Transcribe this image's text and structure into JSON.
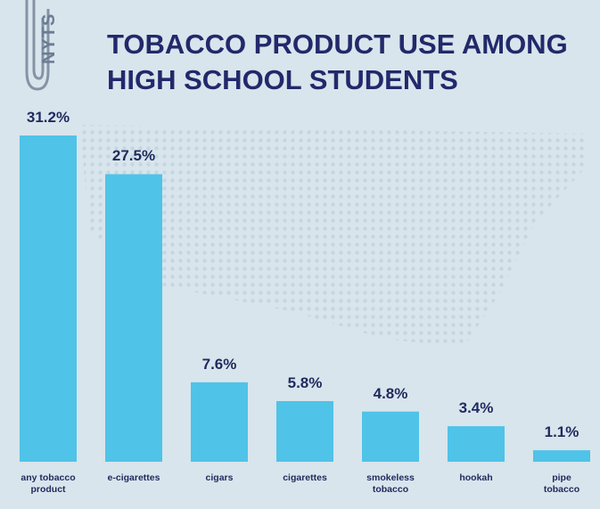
{
  "logo": "NYTS",
  "chart_data": {
    "type": "bar",
    "title": "TOBACCO PRODUCT USE AMONG\nHIGH SCHOOL STUDENTS",
    "categories": [
      "any tobacco\nproduct",
      "e-cigarettes",
      "cigars",
      "cigarettes",
      "smokeless\ntobacco",
      "hookah",
      "pipe\ntobacco"
    ],
    "values": [
      31.2,
      27.5,
      7.6,
      5.8,
      4.8,
      3.4,
      1.1
    ],
    "value_labels": [
      "31.2%",
      "27.5%",
      "7.6%",
      "5.8%",
      "4.8%",
      "3.4%",
      "1.1%"
    ],
    "color": "#4fc3e8"
  }
}
